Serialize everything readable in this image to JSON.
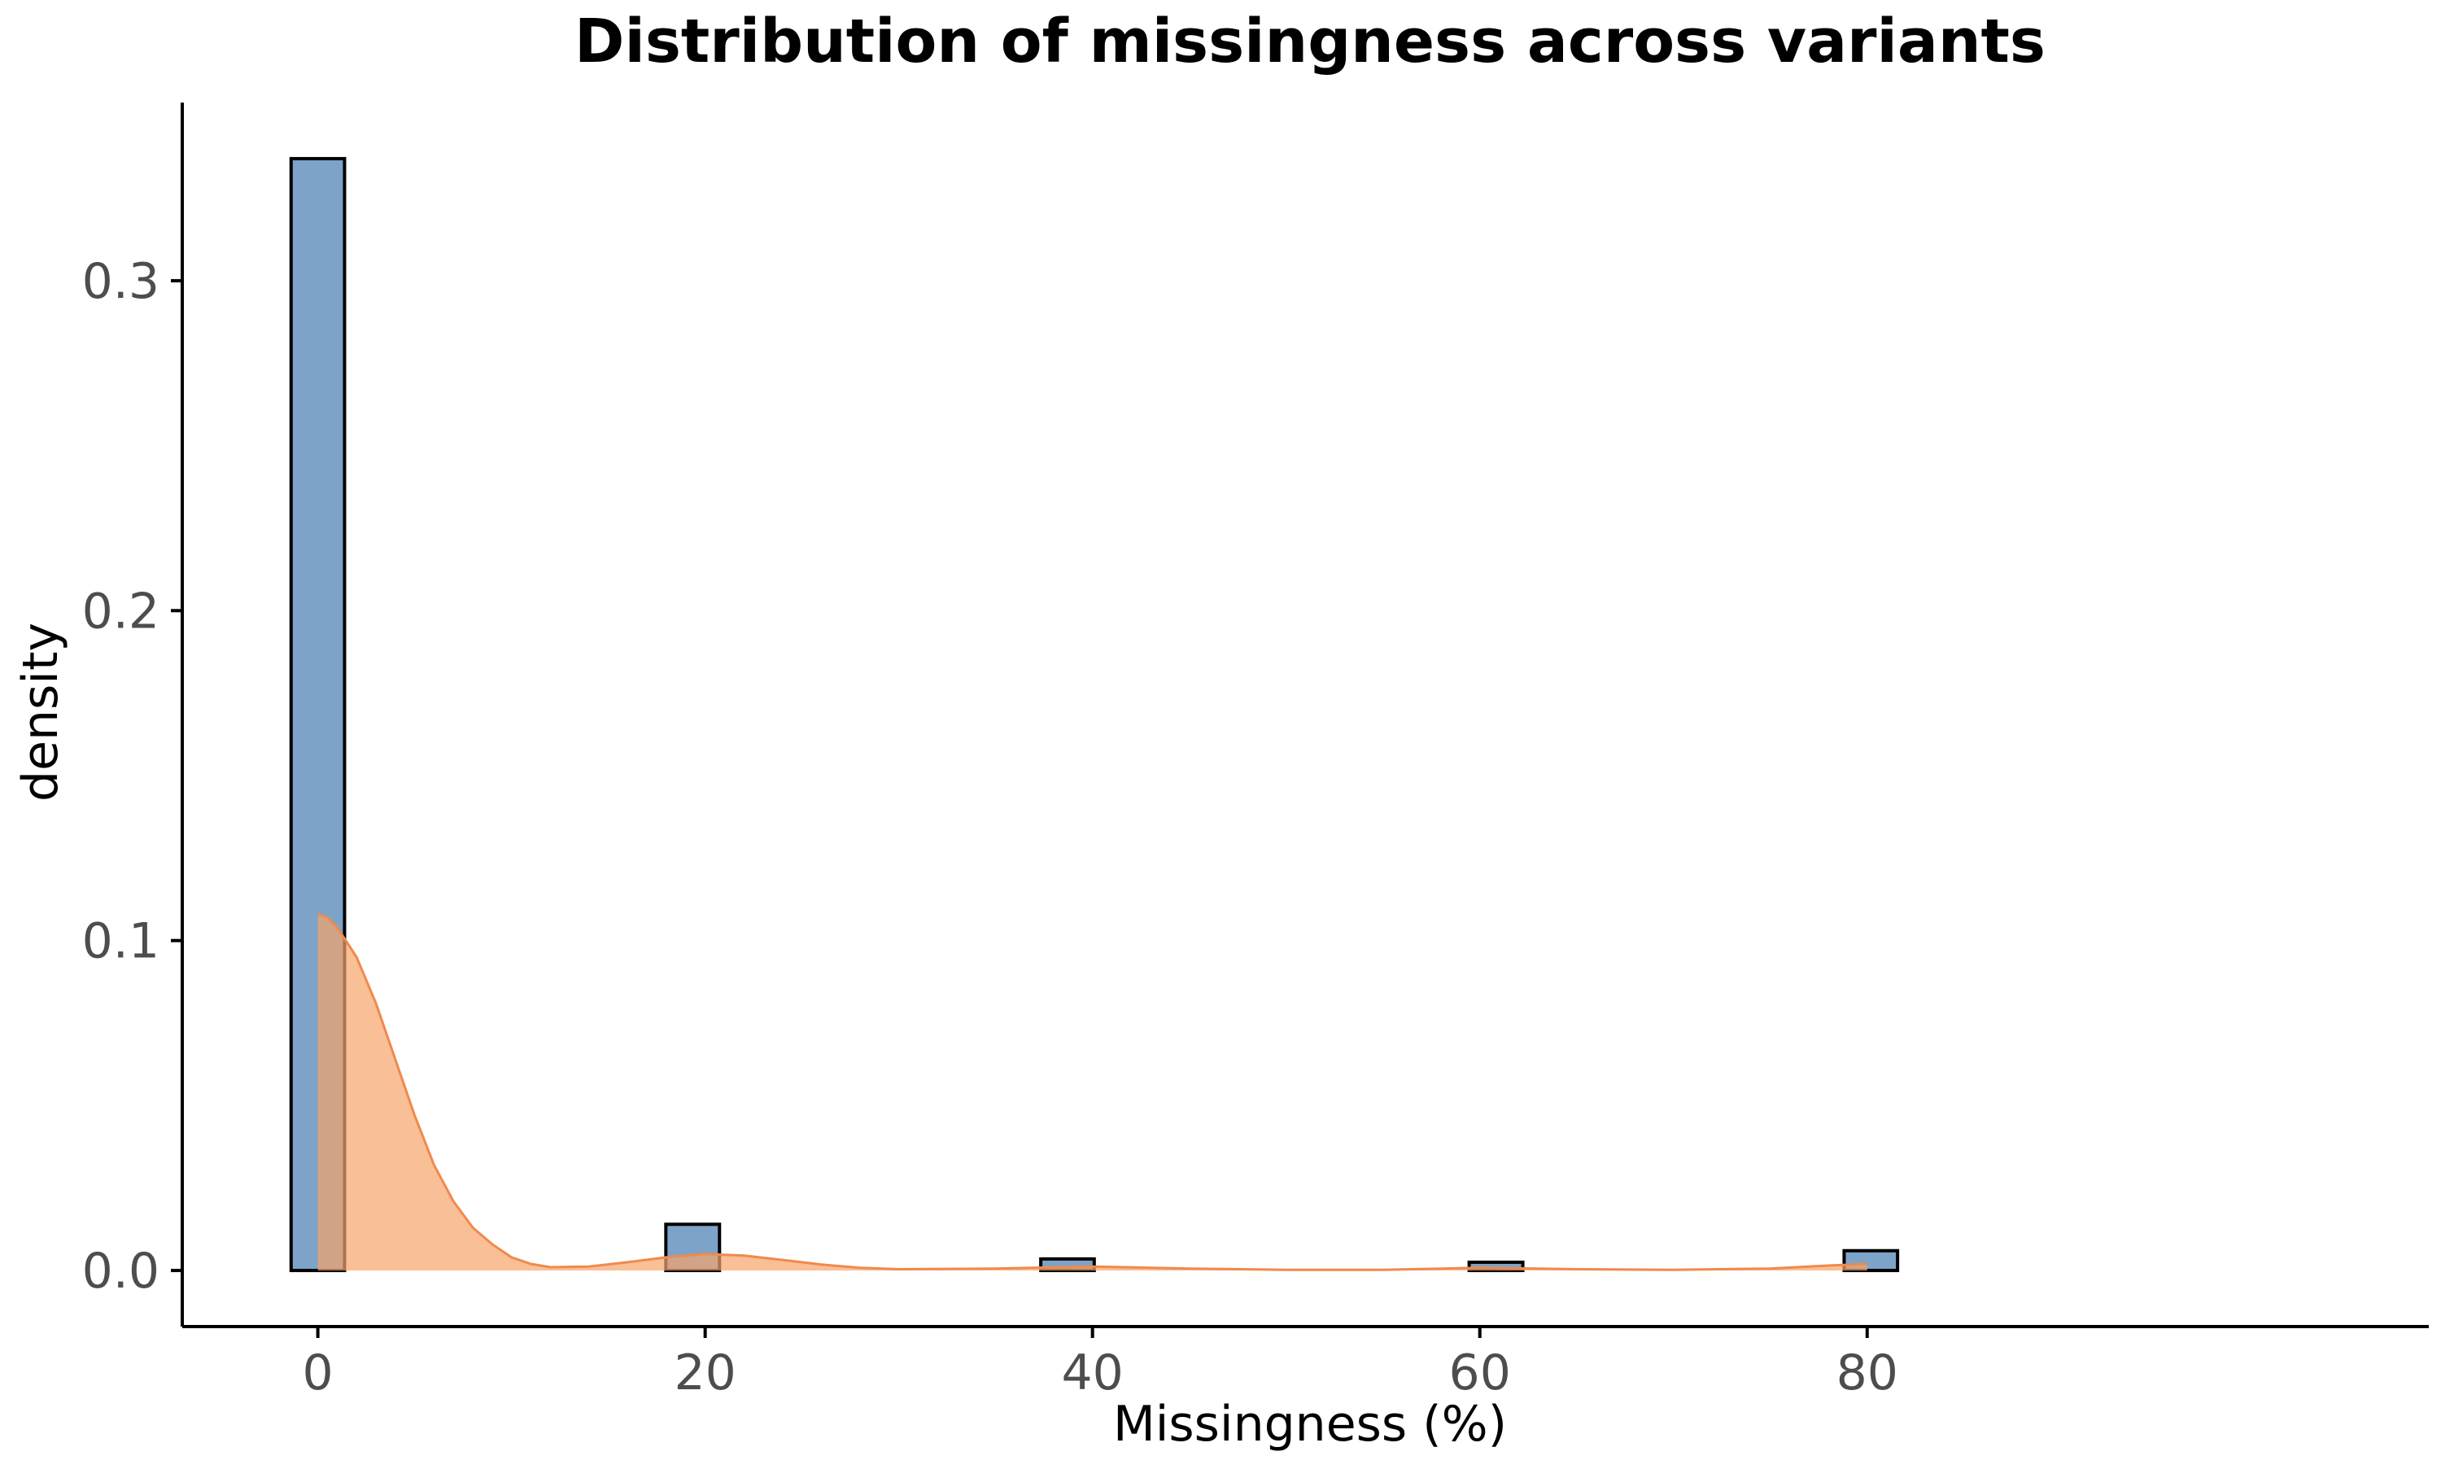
{
  "chart_data": {
    "type": "histogram",
    "title": "Distribution of missingness across variants",
    "xlabel": "Missingness (%)",
    "ylabel": "density",
    "xlim": [
      -7,
      109
    ],
    "ylim": [
      -0.017,
      0.354
    ],
    "x_ticks": [
      {
        "value": 0,
        "label": "0"
      },
      {
        "value": 20,
        "label": "20"
      },
      {
        "value": 40,
        "label": "40"
      },
      {
        "value": 60,
        "label": "60"
      },
      {
        "value": 80,
        "label": "80"
      }
    ],
    "y_ticks": [
      {
        "value": 0.0,
        "label": "0.0"
      },
      {
        "value": 0.1,
        "label": "0.1"
      },
      {
        "value": 0.2,
        "label": "0.2"
      },
      {
        "value": 0.3,
        "label": "0.3"
      }
    ],
    "bins": [
      {
        "x0": -1.38,
        "x1": 1.38,
        "density": 0.337
      },
      {
        "x0": 17.97,
        "x1": 20.74,
        "density": 0.014
      },
      {
        "x0": 37.33,
        "x1": 40.09,
        "density": 0.0035
      },
      {
        "x0": 59.45,
        "x1": 62.22,
        "density": 0.0025
      },
      {
        "x0": 78.81,
        "x1": 81.57,
        "density": 0.006
      }
    ],
    "density_curve": {
      "x": [
        0,
        0.5,
        1,
        2,
        3,
        4,
        5,
        6,
        7,
        8,
        9,
        10,
        11,
        12,
        14,
        16,
        18,
        20,
        22,
        24,
        26,
        28,
        30,
        35,
        40,
        45,
        50,
        55,
        60,
        65,
        70,
        75,
        78,
        80
      ],
      "y": [
        0.108,
        0.107,
        0.104,
        0.095,
        0.081,
        0.064,
        0.047,
        0.032,
        0.021,
        0.013,
        0.008,
        0.004,
        0.002,
        0.001,
        0.0012,
        0.0025,
        0.004,
        0.005,
        0.0045,
        0.0032,
        0.0018,
        0.0008,
        0.0004,
        0.0006,
        0.0012,
        0.0006,
        0.0002,
        0.0002,
        0.0008,
        0.0004,
        0.0002,
        0.0006,
        0.0015,
        0.002
      ]
    },
    "colors": {
      "histogram_fill": "#7da3c8",
      "histogram_stroke": "#000000",
      "density_fill": "#f7a46b",
      "density_stroke": "#f08a4b"
    },
    "grid": false,
    "legend": "none"
  }
}
